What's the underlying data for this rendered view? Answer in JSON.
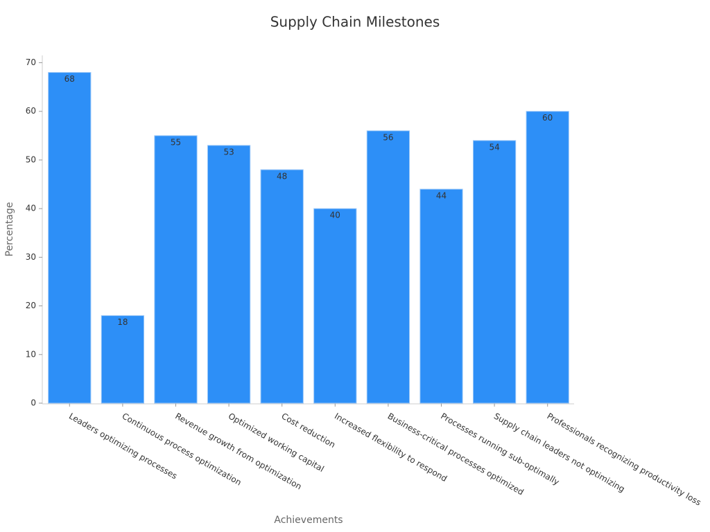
{
  "chart_data": {
    "type": "bar",
    "title": "Supply Chain Milestones",
    "x_label": "Achievements",
    "y_label": "Percentage",
    "categories": [
      "Leaders optimizing processes",
      "Continuous process optimization",
      "Revenue growth from optimization",
      "Optimized working capital",
      "Cost reduction",
      "Increased flexibility to respond",
      "Business-critical processes optimized",
      "Processes running sub-optimally",
      "Supply chain leaders not optimizing",
      "Professionals recognizing productivity loss"
    ],
    "values": [
      68,
      18,
      55,
      53,
      48,
      40,
      56,
      44,
      54,
      60
    ],
    "color": "#2d8ff7",
    "ylim": [
      0,
      71.5
    ],
    "yticks": [
      0,
      10,
      20,
      30,
      40,
      50,
      60,
      70
    ],
    "grid": false,
    "data_labels": true
  }
}
